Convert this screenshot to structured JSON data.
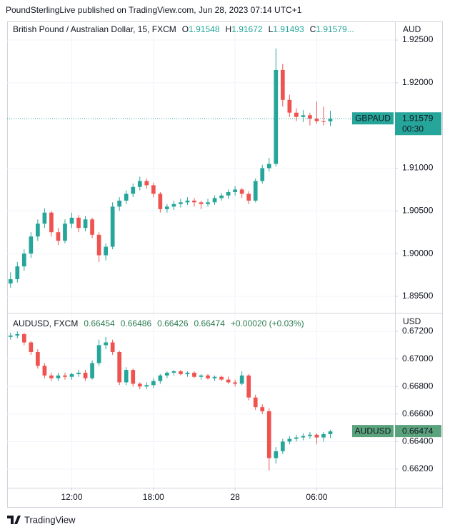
{
  "header": {
    "credit": "PoundSterlingLive published on TradingView.com, Jun 28, 2023 07:14 UTC+1"
  },
  "footer": {
    "brand": "TradingView"
  },
  "chart_data": [
    {
      "type": "candlestick",
      "title": "British Pound / Australian Dollar, 15, FXCM",
      "ohlc_labels": [
        "O",
        "H",
        "L",
        "C"
      ],
      "truncation": "...",
      "axis_unit": "AUD",
      "last_label": "GBPAUD",
      "countdown": "00:30",
      "price_line": true,
      "up_color": "#26a69a",
      "down_color": "#ef5350",
      "last_color": "#26a69a",
      "ylim": [
        1.89307,
        1.92718
      ],
      "yticks": [
        {
          "value": 1.925,
          "label": "1.92500"
        },
        {
          "value": 1.92,
          "label": "1.92000"
        },
        {
          "value": 1.91,
          "label": "1.91000"
        },
        {
          "value": 1.905,
          "label": "1.90500"
        },
        {
          "value": 1.9,
          "label": "1.90000"
        },
        {
          "value": 1.895,
          "label": "1.89500"
        }
      ],
      "candles": [
        [
          1.8965,
          1.8978,
          1.896,
          1.897
        ],
        [
          1.897,
          1.899,
          1.8966,
          1.8985
        ],
        [
          1.8985,
          1.9005,
          1.898,
          1.9
        ],
        [
          1.9,
          1.9025,
          1.8995,
          1.902
        ],
        [
          1.902,
          1.904,
          1.9015,
          1.9035
        ],
        [
          1.9035,
          1.9053,
          1.903,
          1.9048
        ],
        [
          1.9048,
          1.905,
          1.902,
          1.9025
        ],
        [
          1.9025,
          1.903,
          1.901,
          1.9015
        ],
        [
          1.9015,
          1.904,
          1.9012,
          1.9035
        ],
        [
          1.9035,
          1.9048,
          1.903,
          1.9042
        ],
        [
          1.9042,
          1.9045,
          1.9025,
          1.903
        ],
        [
          1.903,
          1.9044,
          1.9026,
          1.904
        ],
        [
          1.904,
          1.9042,
          1.9018,
          1.9022
        ],
        [
          1.9022,
          1.9025,
          1.899,
          1.8998
        ],
        [
          1.8998,
          1.9012,
          1.8992,
          1.9008
        ],
        [
          1.9008,
          1.906,
          1.9005,
          1.9055
        ],
        [
          1.9055,
          1.9066,
          1.905,
          1.9062
        ],
        [
          1.9062,
          1.9074,
          1.9058,
          1.907
        ],
        [
          1.907,
          1.9082,
          1.9066,
          1.9078
        ],
        [
          1.9078,
          1.909,
          1.9074,
          1.9085
        ],
        [
          1.9085,
          1.9088,
          1.9076,
          1.908
        ],
        [
          1.908,
          1.9083,
          1.9066,
          1.907
        ],
        [
          1.907,
          1.9072,
          1.9048,
          1.9052
        ],
        [
          1.9052,
          1.9058,
          1.9048,
          1.9055
        ],
        [
          1.9055,
          1.9062,
          1.9051,
          1.9058
        ],
        [
          1.9058,
          1.9064,
          1.9054,
          1.906
        ],
        [
          1.906,
          1.9066,
          1.9057,
          1.9062
        ],
        [
          1.9062,
          1.9065,
          1.9055,
          1.906
        ],
        [
          1.906,
          1.9062,
          1.9052,
          1.9058
        ],
        [
          1.9058,
          1.9064,
          1.9055,
          1.906
        ],
        [
          1.906,
          1.9068,
          1.9057,
          1.9065
        ],
        [
          1.9065,
          1.9071,
          1.9062,
          1.9068
        ],
        [
          1.9068,
          1.9075,
          1.9064,
          1.9072
        ],
        [
          1.9072,
          1.9079,
          1.9068,
          1.9075
        ],
        [
          1.9075,
          1.9077,
          1.9065,
          1.907
        ],
        [
          1.907,
          1.9073,
          1.9058,
          1.9062
        ],
        [
          1.9062,
          1.9088,
          1.906,
          1.9085
        ],
        [
          1.9085,
          1.9104,
          1.9082,
          1.91
        ],
        [
          1.91,
          1.9112,
          1.9096,
          1.9105
        ],
        [
          1.9105,
          1.924,
          1.9102,
          1.9215
        ],
        [
          1.9215,
          1.9222,
          1.9172,
          1.918
        ],
        [
          1.918,
          1.9186,
          1.916,
          1.9165
        ],
        [
          1.9165,
          1.917,
          1.9155,
          1.916
        ],
        [
          1.916,
          1.9168,
          1.9154,
          1.9162
        ],
        [
          1.9162,
          1.9165,
          1.915,
          1.9158
        ],
        [
          1.9158,
          1.9178,
          1.9152,
          1.9155
        ],
        [
          1.9155,
          1.9172,
          1.915,
          1.91548
        ],
        [
          1.91548,
          1.91672,
          1.91493,
          1.91579
        ]
      ]
    },
    {
      "type": "candlestick",
      "title": "AUDUSD, FXCM",
      "change": "+0.00020 (+0.03%)",
      "axis_unit": "USD",
      "last_label": "AUDUSD",
      "price_line": false,
      "up_color": "#26a69a",
      "down_color": "#ef5350",
      "last_color": "#5ba37d",
      "ylim": [
        0.66065,
        0.6733
      ],
      "yticks": [
        {
          "value": 0.672,
          "label": "0.67200"
        },
        {
          "value": 0.67,
          "label": "0.67000"
        },
        {
          "value": 0.668,
          "label": "0.66800"
        },
        {
          "value": 0.666,
          "label": "0.66600"
        },
        {
          "value": 0.664,
          "label": "0.66400"
        },
        {
          "value": 0.662,
          "label": "0.66200"
        }
      ],
      "categories": [
        null,
        null,
        null,
        null,
        null,
        null,
        null,
        null,
        null,
        "12:00",
        null,
        null,
        null,
        null,
        null,
        null,
        null,
        null,
        null,
        null,
        null,
        "18:00",
        null,
        null,
        null,
        null,
        null,
        null,
        null,
        null,
        null,
        null,
        null,
        "28",
        null,
        null,
        null,
        null,
        null,
        null,
        null,
        null,
        null,
        null,
        null,
        "06:00",
        null,
        null
      ],
      "candles": [
        [
          0.6716,
          0.6719,
          0.6714,
          0.6717
        ],
        [
          0.6717,
          0.672,
          0.6715,
          0.6718
        ],
        [
          0.6718,
          0.6719,
          0.671,
          0.6712
        ],
        [
          0.6712,
          0.6713,
          0.6703,
          0.6705
        ],
        [
          0.6705,
          0.6707,
          0.6693,
          0.6695
        ],
        [
          0.6695,
          0.6697,
          0.6686,
          0.6688
        ],
        [
          0.6688,
          0.669,
          0.6684,
          0.6686
        ],
        [
          0.6686,
          0.669,
          0.6684,
          0.6688
        ],
        [
          0.6688,
          0.669,
          0.6685,
          0.6687
        ],
        [
          0.6687,
          0.669,
          0.6685,
          0.6689
        ],
        [
          0.6689,
          0.6692,
          0.6687,
          0.669
        ],
        [
          0.669,
          0.6692,
          0.6684,
          0.6686
        ],
        [
          0.6686,
          0.6699,
          0.6685,
          0.6697
        ],
        [
          0.6697,
          0.6714,
          0.6695,
          0.671
        ],
        [
          0.671,
          0.6716,
          0.6707,
          0.6712
        ],
        [
          0.6712,
          0.6714,
          0.6703,
          0.6705
        ],
        [
          0.6705,
          0.6706,
          0.6681,
          0.6683
        ],
        [
          0.6683,
          0.6694,
          0.6681,
          0.6692
        ],
        [
          0.6692,
          0.6693,
          0.668,
          0.6682
        ],
        [
          0.6682,
          0.6683,
          0.6678,
          0.668
        ],
        [
          0.668,
          0.6683,
          0.6678,
          0.6681
        ],
        [
          0.6681,
          0.6686,
          0.6679,
          0.6684
        ],
        [
          0.6684,
          0.6689,
          0.6682,
          0.6688
        ],
        [
          0.6688,
          0.6691,
          0.6686,
          0.669
        ],
        [
          0.669,
          0.6692,
          0.6688,
          0.6691
        ],
        [
          0.6691,
          0.6692,
          0.6688,
          0.6689
        ],
        [
          0.6689,
          0.6691,
          0.6687,
          0.669
        ],
        [
          0.669,
          0.6691,
          0.6686,
          0.6687
        ],
        [
          0.6687,
          0.6689,
          0.6685,
          0.6688
        ],
        [
          0.6688,
          0.6689,
          0.6685,
          0.6686
        ],
        [
          0.6686,
          0.6688,
          0.6684,
          0.6687
        ],
        [
          0.6687,
          0.6688,
          0.6684,
          0.6685
        ],
        [
          0.6685,
          0.6687,
          0.6682,
          0.6683
        ],
        [
          0.6683,
          0.6685,
          0.668,
          0.6682
        ],
        [
          0.6682,
          0.6691,
          0.6681,
          0.6688
        ],
        [
          0.6688,
          0.6689,
          0.667,
          0.6672
        ],
        [
          0.6672,
          0.6674,
          0.6663,
          0.6665
        ],
        [
          0.6665,
          0.6667,
          0.666,
          0.6662
        ],
        [
          0.6662,
          0.6664,
          0.6619,
          0.6628
        ],
        [
          0.6628,
          0.6636,
          0.6624,
          0.6633
        ],
        [
          0.6633,
          0.6642,
          0.6631,
          0.664
        ],
        [
          0.664,
          0.6644,
          0.6638,
          0.6642
        ],
        [
          0.6642,
          0.6645,
          0.664,
          0.6643
        ],
        [
          0.6643,
          0.6646,
          0.6641,
          0.6644
        ],
        [
          0.6644,
          0.6647,
          0.6642,
          0.6645
        ],
        [
          0.6645,
          0.6646,
          0.6638,
          0.6643
        ],
        [
          0.6643,
          0.6647,
          0.664,
          0.66454
        ],
        [
          0.66454,
          0.66486,
          0.66426,
          0.66474
        ]
      ]
    }
  ]
}
